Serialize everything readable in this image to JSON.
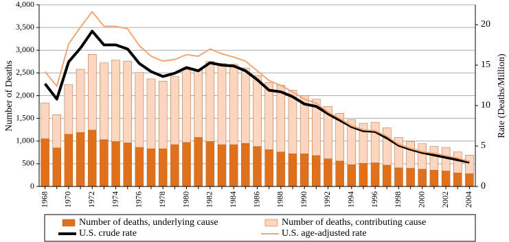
{
  "chart_data": {
    "type": "bar",
    "stacked": true,
    "ylabel": "Number of Deaths",
    "y2label": "Rate (Deaths/Million)",
    "categories": [
      "1968",
      null,
      "1970",
      null,
      "1972",
      null,
      "1974",
      null,
      "1976",
      null,
      "1978",
      null,
      "1980",
      null,
      "1982",
      null,
      "1984",
      null,
      "1986",
      null,
      "1988",
      null,
      "1990",
      null,
      "1992",
      null,
      "1994",
      null,
      "1996",
      null,
      "1998",
      null,
      "2000",
      null,
      "2002",
      null,
      "2004"
    ],
    "ylim": [
      0,
      4000
    ],
    "yticks": [
      0,
      500,
      {
        "value": 1000,
        "label": "1,000"
      },
      {
        "value": 1500,
        "label": "1,500"
      },
      {
        "value": 2000,
        "label": "2,000"
      },
      {
        "value": 2500,
        "label": "2,500"
      },
      {
        "value": 3000,
        "label": "3,000"
      },
      {
        "value": 3500,
        "label": "3,500"
      },
      {
        "value": 4000,
        "label": "4,000"
      }
    ],
    "y2lim": [
      0,
      22.46
    ],
    "y2ticks": [
      0,
      5,
      10,
      15,
      20
    ],
    "grid": true,
    "series": [
      {
        "name": "Number of deaths, underlying cause",
        "type": "bar",
        "color": "#e0701a",
        "values": [
          1050,
          850,
          1150,
          1190,
          1240,
          1030,
          990,
          960,
          860,
          830,
          830,
          920,
          970,
          1080,
          990,
          920,
          920,
          950,
          880,
          810,
          760,
          720,
          720,
          680,
          610,
          560,
          480,
          510,
          520,
          470,
          410,
          400,
          380,
          360,
          340,
          300,
          280
        ]
      },
      {
        "name": "Number of deaths, contributing cause",
        "type": "bar",
        "color": "#fcd6bf",
        "values": [
          790,
          730,
          1090,
          1390,
          1670,
          1690,
          1790,
          1800,
          1650,
          1540,
          1490,
          1500,
          1600,
          1480,
          1760,
          1790,
          1770,
          1660,
          1560,
          1480,
          1470,
          1400,
          1280,
          1240,
          1150,
          1050,
          990,
          880,
          890,
          820,
          670,
          590,
          560,
          520,
          520,
          460,
          410
        ]
      },
      {
        "name": "U.S. crude rate",
        "type": "line",
        "axis": "y2",
        "color": "#000000",
        "values": [
          12.7,
          10.8,
          15.4,
          17.1,
          19.2,
          17.5,
          17.5,
          17.0,
          15.2,
          14.2,
          13.6,
          14.0,
          14.7,
          14.3,
          15.3,
          15.0,
          14.9,
          14.3,
          13.2,
          11.9,
          11.7,
          11.1,
          10.2,
          9.9,
          9.0,
          8.2,
          7.4,
          6.9,
          6.8,
          6.0,
          5.1,
          4.6,
          4.2,
          3.9,
          3.6,
          3.3,
          3.0
        ]
      },
      {
        "name": "U.S. age-adjusted rate",
        "type": "line",
        "axis": "y2",
        "color": "#f4a574",
        "values": [
          14.2,
          12.4,
          17.6,
          19.7,
          21.6,
          19.8,
          19.8,
          19.5,
          17.4,
          16.1,
          15.5,
          15.7,
          16.3,
          16.1,
          17.0,
          16.4,
          16.0,
          15.5,
          14.3,
          13.1,
          12.5,
          11.7,
          10.8,
          10.3,
          9.2,
          8.4,
          7.5,
          7.0,
          6.9,
          6.2,
          5.2,
          4.7,
          4.3,
          4.1,
          3.8,
          3.5,
          3.1
        ]
      }
    ]
  }
}
